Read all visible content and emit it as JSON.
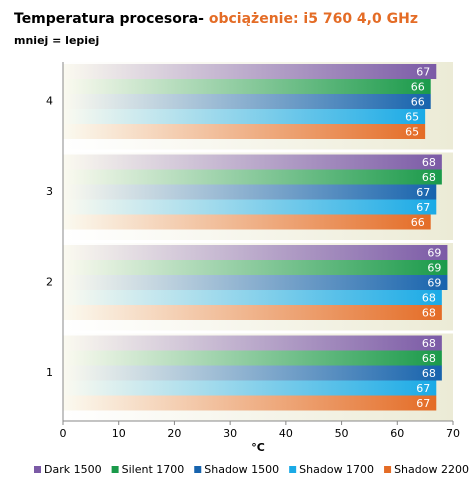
{
  "chart_data": {
    "type": "hbar",
    "title": "Temperatura procesora-",
    "title_highlight": "obciążenie: i5 760 4,0 GHz",
    "subtitle": "mniej = lepiej",
    "x_label": "°C",
    "categories": [
      "4",
      "3",
      "2",
      "1"
    ],
    "series": [
      {
        "name": "Dark 1500",
        "color": "#7b5aa6",
        "values": [
          67,
          68,
          69,
          68
        ]
      },
      {
        "name": "Silent 1700",
        "color": "#1a9a4a",
        "values": [
          66,
          68,
          69,
          68
        ]
      },
      {
        "name": "Shadow 1500",
        "color": "#1763ad",
        "values": [
          66,
          67,
          69,
          68
        ]
      },
      {
        "name": "Shadow 1700",
        "color": "#1aaae6",
        "values": [
          65,
          67,
          68,
          67
        ]
      },
      {
        "name": "Shadow 2200",
        "color": "#e46c26",
        "values": [
          65,
          66,
          68,
          67
        ]
      }
    ],
    "xlim": [
      0,
      70
    ],
    "xticks": [
      0,
      10,
      20,
      30,
      40,
      50,
      60,
      70
    ],
    "title_highlight_color": "#e46c26"
  }
}
